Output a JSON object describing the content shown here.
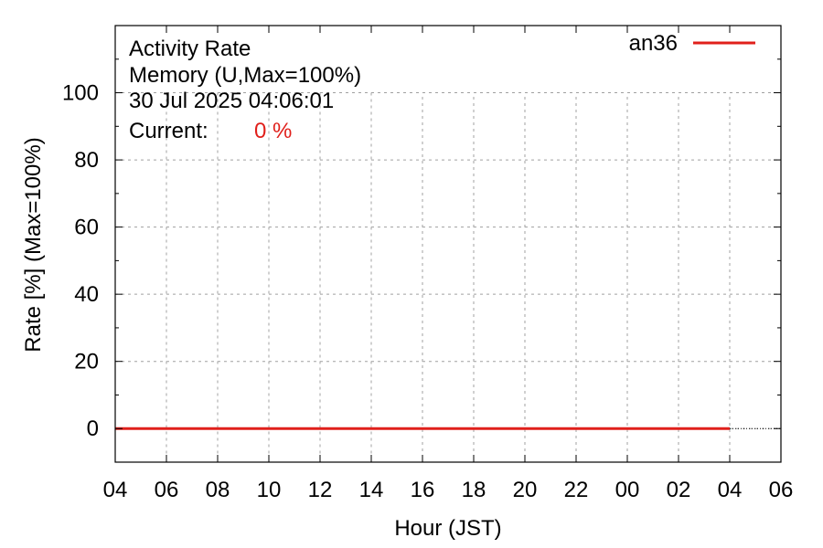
{
  "chart_data": {
    "type": "line",
    "title_lines": [
      "Activity Rate",
      "Memory (U,Max=100%)",
      "30 Jul 2025 04:06:01"
    ],
    "current_label": "Current:",
    "current_value": "0 %",
    "xlabel": "Hour (JST)",
    "ylabel": "Rate [%]  (Max=100%)",
    "x_tick_labels": [
      "04",
      "06",
      "08",
      "10",
      "12",
      "14",
      "16",
      "18",
      "20",
      "22",
      "00",
      "02",
      "04",
      "06"
    ],
    "y_ticks": [
      0,
      20,
      40,
      60,
      80,
      100
    ],
    "ylim": [
      -10,
      120
    ],
    "xlim_hours": [
      0,
      26
    ],
    "grid": true,
    "legend_position": "top-right",
    "series": [
      {
        "name": "an36",
        "color": "#e0201b",
        "x_hours": [
          0,
          24
        ],
        "values": [
          0,
          0
        ]
      }
    ]
  }
}
